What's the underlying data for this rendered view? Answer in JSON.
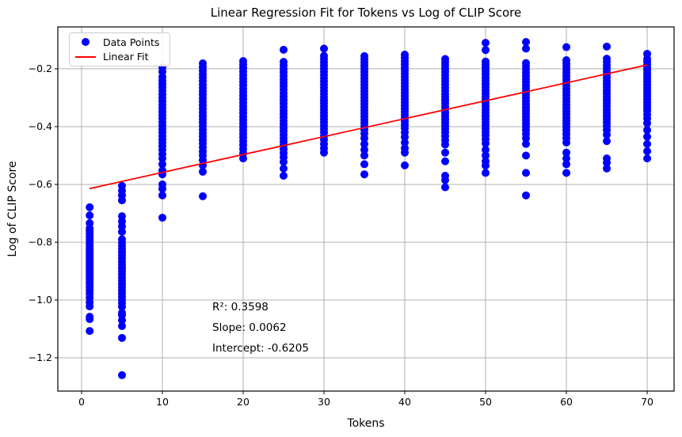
{
  "chart_data": {
    "type": "scatter",
    "title": "Linear Regression Fit for Tokens vs Log of CLIP Score",
    "xlabel": "Tokens",
    "ylabel": "Log of CLIP Score",
    "xlim": [
      -2.94,
      73.33
    ],
    "ylim": [
      -1.315,
      -0.055
    ],
    "grid": true,
    "x_ticks": {
      "values": [
        0,
        10,
        20,
        30,
        40,
        50,
        60,
        70
      ],
      "labels": [
        "0",
        "10",
        "20",
        "30",
        "40",
        "50",
        "60",
        "70"
      ]
    },
    "y_ticks": {
      "values": [
        -0.2,
        -0.4,
        -0.6,
        -0.8,
        -1.0,
        -1.2
      ],
      "labels": [
        "−0.2",
        "−0.4",
        "−0.6",
        "−0.8",
        "−1.0",
        "−1.2"
      ]
    },
    "colors": {
      "points": "#0000ff",
      "fit_line": "#ff0000",
      "grid": "#b0b0b0",
      "frame": "#000000",
      "legend_border": "#cccccc"
    },
    "legend": {
      "position": "upper-left",
      "entries": [
        {
          "label": "Data Points",
          "marker": "dot",
          "color": "#0000ff"
        },
        {
          "label": "Linear Fit",
          "marker": "line",
          "color": "#ff0000"
        }
      ]
    },
    "annotation": {
      "r2": 0.3598,
      "slope": 0.0062,
      "intercept": -0.6205,
      "lines": [
        "R²: 0.3598",
        "Slope: 0.0062",
        "Intercept: -0.6205"
      ]
    },
    "fit_line": {
      "name": "Linear Fit",
      "slope": 0.0062,
      "intercept": -0.6205,
      "x_range": [
        1,
        70
      ]
    },
    "scatter_series": {
      "name": "Data Points",
      "clusters": [
        {
          "tokens": 1,
          "log_clip_scores": [
            -0.679,
            -0.707,
            -0.734,
            -0.752,
            -0.76,
            -0.771,
            -0.78,
            -0.789,
            -0.797,
            -0.806,
            -0.815,
            -0.823,
            -0.832,
            -0.84,
            -0.849,
            -0.858,
            -0.866,
            -0.875,
            -0.884,
            -0.892,
            -0.901,
            -0.91,
            -0.918,
            -0.927,
            -0.936,
            -0.945,
            -0.955,
            -0.966,
            -0.978,
            -0.992,
            -1.008,
            -1.022,
            -1.058,
            -1.066,
            -1.107
          ]
        },
        {
          "tokens": 5,
          "log_clip_scores": [
            -0.605,
            -0.622,
            -0.638,
            -0.655,
            -0.71,
            -0.728,
            -0.745,
            -0.764,
            -0.79,
            -0.802,
            -0.813,
            -0.824,
            -0.835,
            -0.846,
            -0.857,
            -0.868,
            -0.879,
            -0.89,
            -0.901,
            -0.912,
            -0.923,
            -0.934,
            -0.945,
            -0.956,
            -0.967,
            -0.978,
            -0.989,
            -1.0,
            -1.011,
            -1.023,
            -1.044,
            -1.052,
            -1.07,
            -1.09,
            -1.131,
            -1.26
          ]
        },
        {
          "tokens": 10,
          "log_clip_scores": [
            -0.195,
            -0.21,
            -0.228,
            -0.24,
            -0.252,
            -0.264,
            -0.276,
            -0.288,
            -0.3,
            -0.312,
            -0.324,
            -0.336,
            -0.348,
            -0.36,
            -0.372,
            -0.384,
            -0.396,
            -0.408,
            -0.42,
            -0.432,
            -0.444,
            -0.456,
            -0.468,
            -0.48,
            -0.495,
            -0.51,
            -0.53,
            -0.552,
            -0.565,
            -0.6,
            -0.615,
            -0.638,
            -0.715
          ]
        },
        {
          "tokens": 15,
          "log_clip_scores": [
            -0.181,
            -0.194,
            -0.206,
            -0.218,
            -0.23,
            -0.242,
            -0.254,
            -0.266,
            -0.278,
            -0.29,
            -0.302,
            -0.314,
            -0.326,
            -0.338,
            -0.35,
            -0.362,
            -0.374,
            -0.386,
            -0.398,
            -0.41,
            -0.422,
            -0.434,
            -0.446,
            -0.458,
            -0.472,
            -0.486,
            -0.5,
            -0.516,
            -0.534,
            -0.556,
            -0.641
          ]
        },
        {
          "tokens": 20,
          "log_clip_scores": [
            -0.173,
            -0.185,
            -0.197,
            -0.209,
            -0.221,
            -0.233,
            -0.245,
            -0.257,
            -0.269,
            -0.281,
            -0.293,
            -0.305,
            -0.317,
            -0.329,
            -0.341,
            -0.353,
            -0.365,
            -0.377,
            -0.389,
            -0.401,
            -0.413,
            -0.425,
            -0.437,
            -0.45,
            -0.463,
            -0.477,
            -0.492,
            -0.51
          ]
        },
        {
          "tokens": 25,
          "log_clip_scores": [
            -0.134,
            -0.176,
            -0.188,
            -0.2,
            -0.212,
            -0.224,
            -0.236,
            -0.248,
            -0.26,
            -0.272,
            -0.284,
            -0.296,
            -0.308,
            -0.32,
            -0.332,
            -0.344,
            -0.356,
            -0.368,
            -0.38,
            -0.392,
            -0.404,
            -0.416,
            -0.428,
            -0.44,
            -0.452,
            -0.464,
            -0.478,
            -0.492,
            -0.506,
            -0.522,
            -0.545,
            -0.57
          ]
        },
        {
          "tokens": 30,
          "log_clip_scores": [
            -0.13,
            -0.155,
            -0.166,
            -0.177,
            -0.188,
            -0.199,
            -0.21,
            -0.221,
            -0.232,
            -0.243,
            -0.254,
            -0.265,
            -0.276,
            -0.287,
            -0.298,
            -0.309,
            -0.32,
            -0.331,
            -0.342,
            -0.353,
            -0.364,
            -0.375,
            -0.386,
            -0.397,
            -0.408,
            -0.42,
            -0.432,
            -0.445,
            -0.46,
            -0.475,
            -0.49
          ]
        },
        {
          "tokens": 35,
          "log_clip_scores": [
            -0.156,
            -0.167,
            -0.178,
            -0.189,
            -0.2,
            -0.211,
            -0.222,
            -0.233,
            -0.244,
            -0.255,
            -0.266,
            -0.277,
            -0.288,
            -0.299,
            -0.31,
            -0.321,
            -0.332,
            -0.343,
            -0.354,
            -0.365,
            -0.376,
            -0.387,
            -0.398,
            -0.41,
            -0.424,
            -0.44,
            -0.46,
            -0.48,
            -0.5,
            -0.53,
            -0.565
          ]
        },
        {
          "tokens": 40,
          "log_clip_scores": [
            -0.151,
            -0.162,
            -0.173,
            -0.184,
            -0.195,
            -0.206,
            -0.217,
            -0.228,
            -0.239,
            -0.25,
            -0.261,
            -0.272,
            -0.283,
            -0.294,
            -0.305,
            -0.316,
            -0.327,
            -0.338,
            -0.349,
            -0.36,
            -0.371,
            -0.382,
            -0.394,
            -0.406,
            -0.42,
            -0.436,
            -0.455,
            -0.475,
            -0.49,
            -0.534
          ]
        },
        {
          "tokens": 45,
          "log_clip_scores": [
            -0.166,
            -0.177,
            -0.188,
            -0.199,
            -0.21,
            -0.221,
            -0.232,
            -0.243,
            -0.254,
            -0.265,
            -0.276,
            -0.287,
            -0.298,
            -0.309,
            -0.32,
            -0.331,
            -0.342,
            -0.353,
            -0.364,
            -0.375,
            -0.386,
            -0.397,
            -0.408,
            -0.42,
            -0.433,
            -0.447,
            -0.462,
            -0.49,
            -0.52,
            -0.57,
            -0.585,
            -0.61
          ]
        },
        {
          "tokens": 50,
          "log_clip_scores": [
            -0.11,
            -0.135,
            -0.175,
            -0.186,
            -0.197,
            -0.208,
            -0.219,
            -0.23,
            -0.241,
            -0.252,
            -0.263,
            -0.274,
            -0.285,
            -0.296,
            -0.307,
            -0.318,
            -0.329,
            -0.34,
            -0.351,
            -0.362,
            -0.373,
            -0.384,
            -0.395,
            -0.406,
            -0.418,
            -0.43,
            -0.444,
            -0.458,
            -0.48,
            -0.5,
            -0.52,
            -0.535,
            -0.56
          ]
        },
        {
          "tokens": 55,
          "log_clip_scores": [
            -0.107,
            -0.13,
            -0.18,
            -0.191,
            -0.202,
            -0.213,
            -0.224,
            -0.235,
            -0.246,
            -0.257,
            -0.268,
            -0.279,
            -0.29,
            -0.301,
            -0.312,
            -0.323,
            -0.334,
            -0.345,
            -0.356,
            -0.367,
            -0.378,
            -0.389,
            -0.4,
            -0.412,
            -0.425,
            -0.44,
            -0.46,
            -0.5,
            -0.56,
            -0.638
          ]
        },
        {
          "tokens": 60,
          "log_clip_scores": [
            -0.125,
            -0.17,
            -0.181,
            -0.192,
            -0.203,
            -0.214,
            -0.225,
            -0.236,
            -0.247,
            -0.258,
            -0.269,
            -0.28,
            -0.291,
            -0.302,
            -0.313,
            -0.324,
            -0.335,
            -0.346,
            -0.357,
            -0.368,
            -0.379,
            -0.39,
            -0.401,
            -0.413,
            -0.426,
            -0.44,
            -0.455,
            -0.49,
            -0.51,
            -0.53,
            -0.56
          ]
        },
        {
          "tokens": 65,
          "log_clip_scores": [
            -0.123,
            -0.165,
            -0.176,
            -0.187,
            -0.198,
            -0.209,
            -0.22,
            -0.231,
            -0.242,
            -0.253,
            -0.264,
            -0.275,
            -0.286,
            -0.297,
            -0.308,
            -0.319,
            -0.33,
            -0.341,
            -0.352,
            -0.363,
            -0.374,
            -0.386,
            -0.398,
            -0.412,
            -0.428,
            -0.45,
            -0.51,
            -0.525,
            -0.545
          ]
        },
        {
          "tokens": 70,
          "log_clip_scores": [
            -0.148,
            -0.165,
            -0.175,
            -0.185,
            -0.195,
            -0.205,
            -0.215,
            -0.225,
            -0.235,
            -0.245,
            -0.255,
            -0.265,
            -0.275,
            -0.285,
            -0.295,
            -0.305,
            -0.315,
            -0.325,
            -0.335,
            -0.345,
            -0.358,
            -0.372,
            -0.388,
            -0.412,
            -0.435,
            -0.46,
            -0.485,
            -0.51
          ]
        }
      ]
    }
  }
}
